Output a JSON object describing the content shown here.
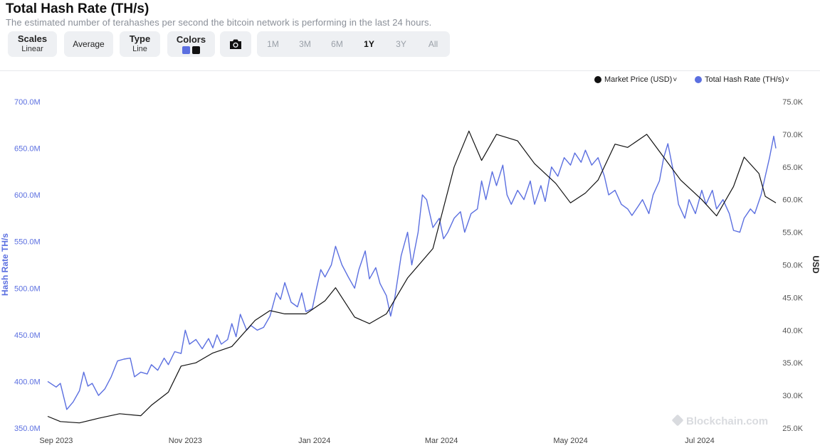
{
  "header": {
    "title": "Total Hash Rate (TH/s)",
    "subtitle": "The estimated number of terahashes per second the bitcoin network is performing in the last 24 hours."
  },
  "toolbar": {
    "scales": {
      "label": "Scales",
      "value": "Linear"
    },
    "average": {
      "label": "Average"
    },
    "type": {
      "label": "Type",
      "value": "Line"
    },
    "colors": {
      "label": "Colors",
      "swatch1": "#5b6fe0",
      "swatch2": "#111111"
    },
    "camera_icon": "camera-icon",
    "ranges": [
      "1M",
      "3M",
      "6M",
      "1Y",
      "3Y",
      "All"
    ],
    "active_range": "1Y"
  },
  "legend": {
    "market_price": "Market Price (USD)",
    "hash_rate": "Total Hash Rate (TH/s)",
    "chevron": "˅"
  },
  "watermark": "Blockchain.com",
  "colors": {
    "hash": "#5b6fe0",
    "price": "#111111",
    "axis_left": "#5b6fe0",
    "axis_right": "#555555"
  },
  "chart_data": {
    "type": "line",
    "title": "Total Hash Rate (TH/s)",
    "x_ticks": [
      "Sep 2023",
      "Nov 2023",
      "Jan 2024",
      "Mar 2024",
      "May 2024",
      "Jul 2024"
    ],
    "y_left": {
      "label": "Hash Rate TH/s",
      "ticks": [
        "350.0M",
        "400.0M",
        "450.0M",
        "500.0M",
        "550.0M",
        "600.0M",
        "650.0M",
        "700.0M"
      ],
      "range": [
        350,
        700
      ]
    },
    "y_right": {
      "label": "USD",
      "ticks": [
        "25.0K",
        "30.0K",
        "35.0K",
        "40.0K",
        "45.0K",
        "50.0K",
        "55.0K",
        "60.0K",
        "65.0K",
        "70.0K",
        "75.0K"
      ],
      "range": [
        25,
        75
      ]
    },
    "x_range": [
      "2023-08-28",
      "2024-08-06"
    ],
    "series": [
      {
        "name": "Total Hash Rate (TH/s)",
        "axis": "left",
        "unit": "M TH/s",
        "points": [
          [
            "2023-08-28",
            400
          ],
          [
            "2023-09-01",
            394
          ],
          [
            "2023-09-03",
            398
          ],
          [
            "2023-09-06",
            370
          ],
          [
            "2023-09-09",
            378
          ],
          [
            "2023-09-12",
            390
          ],
          [
            "2023-09-14",
            410
          ],
          [
            "2023-09-16",
            395
          ],
          [
            "2023-09-18",
            398
          ],
          [
            "2023-09-21",
            385
          ],
          [
            "2023-09-24",
            392
          ],
          [
            "2023-09-27",
            405
          ],
          [
            "2023-09-30",
            422
          ],
          [
            "2023-10-03",
            424
          ],
          [
            "2023-10-06",
            425
          ],
          [
            "2023-10-08",
            405
          ],
          [
            "2023-10-11",
            410
          ],
          [
            "2023-10-14",
            408
          ],
          [
            "2023-10-16",
            418
          ],
          [
            "2023-10-19",
            412
          ],
          [
            "2023-10-22",
            425
          ],
          [
            "2023-10-24",
            418
          ],
          [
            "2023-10-27",
            432
          ],
          [
            "2023-10-30",
            430
          ],
          [
            "2023-11-01",
            455
          ],
          [
            "2023-11-03",
            440
          ],
          [
            "2023-11-06",
            445
          ],
          [
            "2023-11-09",
            435
          ],
          [
            "2023-11-12",
            446
          ],
          [
            "2023-11-14",
            436
          ],
          [
            "2023-11-16",
            450
          ],
          [
            "2023-11-18",
            440
          ],
          [
            "2023-11-21",
            445
          ],
          [
            "2023-11-23",
            462
          ],
          [
            "2023-11-25",
            448
          ],
          [
            "2023-11-27",
            472
          ],
          [
            "2023-11-30",
            455
          ],
          [
            "2023-12-02",
            460
          ],
          [
            "2023-12-05",
            455
          ],
          [
            "2023-12-08",
            458
          ],
          [
            "2023-12-11",
            470
          ],
          [
            "2023-12-14",
            495
          ],
          [
            "2023-12-16",
            488
          ],
          [
            "2023-12-18",
            506
          ],
          [
            "2023-12-21",
            485
          ],
          [
            "2023-12-24",
            480
          ],
          [
            "2023-12-26",
            495
          ],
          [
            "2023-12-28",
            475
          ],
          [
            "2023-12-31",
            478
          ],
          [
            "2024-01-02",
            500
          ],
          [
            "2024-01-04",
            520
          ],
          [
            "2024-01-06",
            512
          ],
          [
            "2024-01-09",
            525
          ],
          [
            "2024-01-11",
            545
          ],
          [
            "2024-01-14",
            525
          ],
          [
            "2024-01-17",
            512
          ],
          [
            "2024-01-20",
            500
          ],
          [
            "2024-01-22",
            520
          ],
          [
            "2024-01-25",
            540
          ],
          [
            "2024-01-27",
            510
          ],
          [
            "2024-01-30",
            522
          ],
          [
            "2024-02-01",
            505
          ],
          [
            "2024-02-04",
            492
          ],
          [
            "2024-02-06",
            470
          ],
          [
            "2024-02-08",
            490
          ],
          [
            "2024-02-11",
            535
          ],
          [
            "2024-02-14",
            560
          ],
          [
            "2024-02-16",
            525
          ],
          [
            "2024-02-19",
            560
          ],
          [
            "2024-02-21",
            600
          ],
          [
            "2024-02-23",
            595
          ],
          [
            "2024-02-26",
            565
          ],
          [
            "2024-02-29",
            575
          ],
          [
            "2024-03-02",
            553
          ],
          [
            "2024-03-04",
            560
          ],
          [
            "2024-03-07",
            575
          ],
          [
            "2024-03-10",
            582
          ],
          [
            "2024-03-12",
            560
          ],
          [
            "2024-03-15",
            580
          ],
          [
            "2024-03-18",
            585
          ],
          [
            "2024-03-20",
            615
          ],
          [
            "2024-03-22",
            595
          ],
          [
            "2024-03-25",
            625
          ],
          [
            "2024-03-27",
            610
          ],
          [
            "2024-03-30",
            632
          ],
          [
            "2024-04-01",
            600
          ],
          [
            "2024-04-03",
            590
          ],
          [
            "2024-04-06",
            605
          ],
          [
            "2024-04-09",
            595
          ],
          [
            "2024-04-12",
            615
          ],
          [
            "2024-04-14",
            590
          ],
          [
            "2024-04-17",
            610
          ],
          [
            "2024-04-19",
            593
          ],
          [
            "2024-04-22",
            630
          ],
          [
            "2024-04-25",
            620
          ],
          [
            "2024-04-28",
            640
          ],
          [
            "2024-05-01",
            632
          ],
          [
            "2024-05-03",
            645
          ],
          [
            "2024-05-06",
            635
          ],
          [
            "2024-05-08",
            648
          ],
          [
            "2024-05-11",
            632
          ],
          [
            "2024-05-14",
            640
          ],
          [
            "2024-05-17",
            620
          ],
          [
            "2024-05-19",
            600
          ],
          [
            "2024-05-22",
            605
          ],
          [
            "2024-05-25",
            590
          ],
          [
            "2024-05-28",
            585
          ],
          [
            "2024-05-30",
            578
          ],
          [
            "2024-06-02",
            588
          ],
          [
            "2024-06-04",
            595
          ],
          [
            "2024-06-07",
            580
          ],
          [
            "2024-06-09",
            600
          ],
          [
            "2024-06-12",
            615
          ],
          [
            "2024-06-14",
            640
          ],
          [
            "2024-06-16",
            655
          ],
          [
            "2024-06-19",
            620
          ],
          [
            "2024-06-21",
            590
          ],
          [
            "2024-06-24",
            575
          ],
          [
            "2024-06-26",
            595
          ],
          [
            "2024-06-29",
            580
          ],
          [
            "2024-07-02",
            605
          ],
          [
            "2024-07-04",
            590
          ],
          [
            "2024-07-07",
            605
          ],
          [
            "2024-07-09",
            585
          ],
          [
            "2024-07-12",
            595
          ],
          [
            "2024-07-15",
            580
          ],
          [
            "2024-07-17",
            562
          ],
          [
            "2024-07-20",
            560
          ],
          [
            "2024-07-22",
            575
          ],
          [
            "2024-07-25",
            585
          ],
          [
            "2024-07-27",
            580
          ],
          [
            "2024-07-30",
            600
          ],
          [
            "2024-08-01",
            620
          ],
          [
            "2024-08-03",
            640
          ],
          [
            "2024-08-05",
            663
          ],
          [
            "2024-08-06",
            650
          ]
        ]
      },
      {
        "name": "Market Price (USD)",
        "axis": "right",
        "unit": "K USD",
        "points": [
          [
            "2023-08-28",
            26.8
          ],
          [
            "2023-09-03",
            26.0
          ],
          [
            "2023-09-12",
            25.8
          ],
          [
            "2023-09-21",
            26.5
          ],
          [
            "2023-10-01",
            27.2
          ],
          [
            "2023-10-11",
            26.9
          ],
          [
            "2023-10-16",
            28.5
          ],
          [
            "2023-10-24",
            30.5
          ],
          [
            "2023-10-30",
            34.5
          ],
          [
            "2023-11-06",
            35.0
          ],
          [
            "2023-11-14",
            36.5
          ],
          [
            "2023-11-23",
            37.5
          ],
          [
            "2023-12-04",
            41.5
          ],
          [
            "2023-12-11",
            43.0
          ],
          [
            "2023-12-18",
            42.5
          ],
          [
            "2023-12-28",
            42.5
          ],
          [
            "2024-01-06",
            44.5
          ],
          [
            "2024-01-11",
            46.5
          ],
          [
            "2024-01-20",
            42.0
          ],
          [
            "2024-01-27",
            41.0
          ],
          [
            "2024-02-04",
            42.5
          ],
          [
            "2024-02-14",
            48.0
          ],
          [
            "2024-02-26",
            52.5
          ],
          [
            "2024-03-07",
            65.0
          ],
          [
            "2024-03-14",
            70.5
          ],
          [
            "2024-03-20",
            66.0
          ],
          [
            "2024-03-27",
            70.0
          ],
          [
            "2024-04-06",
            69.0
          ],
          [
            "2024-04-14",
            65.5
          ],
          [
            "2024-04-24",
            62.5
          ],
          [
            "2024-05-01",
            59.5
          ],
          [
            "2024-05-08",
            61.0
          ],
          [
            "2024-05-14",
            63.0
          ],
          [
            "2024-05-22",
            68.5
          ],
          [
            "2024-05-28",
            68.0
          ],
          [
            "2024-06-06",
            70.0
          ],
          [
            "2024-06-14",
            66.5
          ],
          [
            "2024-06-22",
            63.0
          ],
          [
            "2024-07-02",
            60.0
          ],
          [
            "2024-07-09",
            57.5
          ],
          [
            "2024-07-17",
            62.0
          ],
          [
            "2024-07-22",
            66.5
          ],
          [
            "2024-07-29",
            64.0
          ],
          [
            "2024-08-01",
            60.5
          ],
          [
            "2024-08-06",
            59.5
          ]
        ]
      }
    ],
    "legend_position": "top-right",
    "grid": false
  }
}
